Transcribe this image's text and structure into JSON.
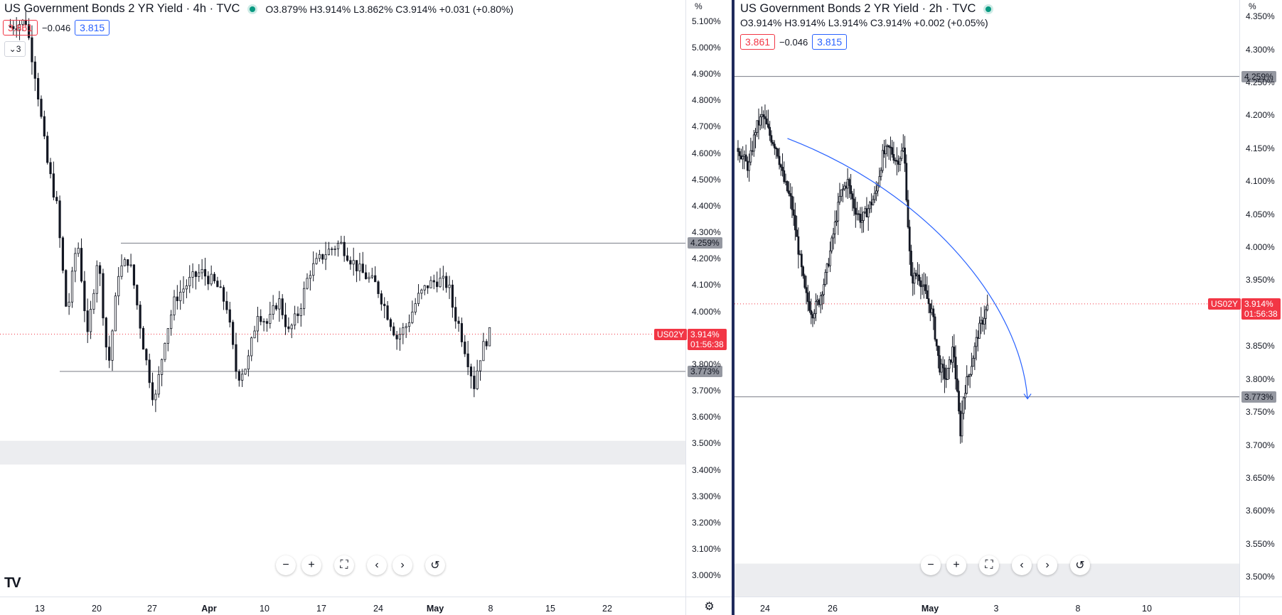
{
  "chart_data": [
    {
      "type": "candlestick",
      "title": "US Government Bonds 2 YR Yield · 4h · TVC",
      "ohlc": {
        "O": "3.879%",
        "H": "3.914%",
        "L": "3.862%",
        "C": "3.914%",
        "change": "+0.031 (+0.80%)"
      },
      "bid": "3.861",
      "spread": "−0.046",
      "ask": "3.815",
      "unit": "%",
      "y_ticks": [
        "5.100%",
        "5.000%",
        "4.900%",
        "4.800%",
        "4.700%",
        "4.600%",
        "4.500%",
        "4.400%",
        "4.300%",
        "4.200%",
        "4.100%",
        "4.000%",
        "3.900%",
        "3.800%",
        "3.700%",
        "3.600%",
        "3.500%",
        "3.400%",
        "3.300%",
        "3.200%",
        "3.100%",
        "3.000%"
      ],
      "x_ticks": [
        "13",
        "20",
        "27",
        "Apr",
        "10",
        "17",
        "24",
        "May",
        "8",
        "15",
        "22"
      ],
      "ylim": [
        2.92,
        5.18
      ],
      "horizontal_levels": [
        {
          "value": 4.259,
          "label": "4.259%"
        },
        {
          "value": 3.773,
          "label": "3.773%"
        }
      ],
      "last_price": {
        "symbol": "US02Y",
        "value": 3.914,
        "label": "3.914%",
        "countdown": "01:56:38"
      },
      "shaded_zone": [
        3.42,
        3.51
      ],
      "series_path": [
        {
          "x": 0,
          "y": 5.08
        },
        {
          "x": 3,
          "y": 5.1
        },
        {
          "x": 5,
          "y": 4.88
        },
        {
          "x": 7,
          "y": 4.58
        },
        {
          "x": 9,
          "y": 4.4
        },
        {
          "x": 11,
          "y": 3.98
        },
        {
          "x": 13,
          "y": 4.28
        },
        {
          "x": 15,
          "y": 3.9
        },
        {
          "x": 17,
          "y": 4.22
        },
        {
          "x": 19,
          "y": 3.78
        },
        {
          "x": 21,
          "y": 4.15
        },
        {
          "x": 23,
          "y": 4.2
        },
        {
          "x": 24,
          "y": 4.1
        },
        {
          "x": 26,
          "y": 3.85
        },
        {
          "x": 28,
          "y": 3.65
        },
        {
          "x": 30,
          "y": 3.9
        },
        {
          "x": 32,
          "y": 4.05
        },
        {
          "x": 35,
          "y": 4.12
        },
        {
          "x": 37,
          "y": 4.15
        },
        {
          "x": 40,
          "y": 4.1
        },
        {
          "x": 42,
          "y": 4.02
        },
        {
          "x": 44,
          "y": 3.75
        },
        {
          "x": 46,
          "y": 3.8
        },
        {
          "x": 48,
          "y": 4.0
        },
        {
          "x": 50,
          "y": 3.95
        },
        {
          "x": 52,
          "y": 4.05
        },
        {
          "x": 54,
          "y": 3.92
        },
        {
          "x": 56,
          "y": 4.0
        },
        {
          "x": 58,
          "y": 4.15
        },
        {
          "x": 61,
          "y": 4.22
        },
        {
          "x": 64,
          "y": 4.26
        },
        {
          "x": 66,
          "y": 4.2
        },
        {
          "x": 68,
          "y": 4.15
        },
        {
          "x": 71,
          "y": 4.1
        },
        {
          "x": 73,
          "y": 4.0
        },
        {
          "x": 75,
          "y": 3.9
        },
        {
          "x": 77,
          "y": 3.95
        },
        {
          "x": 79,
          "y": 4.05
        },
        {
          "x": 81,
          "y": 4.1
        },
        {
          "x": 83,
          "y": 4.12
        },
        {
          "x": 85,
          "y": 4.1
        },
        {
          "x": 86,
          "y": 4.0
        },
        {
          "x": 87,
          "y": 3.95
        },
        {
          "x": 89,
          "y": 3.8
        },
        {
          "x": 90,
          "y": 3.72
        },
        {
          "x": 91,
          "y": 3.82
        },
        {
          "x": 92,
          "y": 3.88
        },
        {
          "x": 93,
          "y": 3.914
        }
      ],
      "x_domain": [
        -2,
        131
      ]
    },
    {
      "type": "candlestick",
      "title": "US Government Bonds 2 YR Yield · 2h · TVC",
      "ohlc": {
        "O": "3.914%",
        "H": "3.914%",
        "L": "3.914%",
        "C": "3.914%",
        "change": "+0.002 (+0.05%)"
      },
      "bid": "3.861",
      "spread": "−0.046",
      "ask": "3.815",
      "unit": "%",
      "y_ticks": [
        "4.350%",
        "4.300%",
        "4.250%",
        "4.200%",
        "4.150%",
        "4.100%",
        "4.050%",
        "4.000%",
        "3.950%",
        "3.900%",
        "3.850%",
        "3.800%",
        "3.750%",
        "3.700%",
        "3.650%",
        "3.600%",
        "3.550%",
        "3.500%"
      ],
      "x_ticks": [
        "24",
        "26",
        "May",
        "3",
        "8",
        "10"
      ],
      "ylim": [
        3.47,
        4.375
      ],
      "horizontal_levels": [
        {
          "value": 4.259,
          "label": "4.259%"
        },
        {
          "value": 3.773,
          "label": "3.773%"
        }
      ],
      "last_price": {
        "symbol": "US02Y",
        "value": 3.914,
        "label": "3.914%",
        "countdown": "01:56:38"
      },
      "shaded_zone": [
        3.47,
        3.52
      ],
      "projection_curve": [
        {
          "x": 14,
          "y": 4.165
        },
        {
          "x": 55,
          "y": 4.08
        },
        {
          "x": 80,
          "y": 3.91
        },
        {
          "x": 82,
          "y": 3.77
        }
      ],
      "series_path": [
        {
          "x": 0,
          "y": 4.15
        },
        {
          "x": 3,
          "y": 4.12
        },
        {
          "x": 5,
          "y": 4.18
        },
        {
          "x": 7,
          "y": 4.2
        },
        {
          "x": 9,
          "y": 4.17
        },
        {
          "x": 11,
          "y": 4.15
        },
        {
          "x": 13,
          "y": 4.1
        },
        {
          "x": 15,
          "y": 4.07
        },
        {
          "x": 17,
          "y": 4.0
        },
        {
          "x": 19,
          "y": 3.93
        },
        {
          "x": 21,
          "y": 3.9
        },
        {
          "x": 23,
          "y": 3.92
        },
        {
          "x": 25,
          "y": 3.96
        },
        {
          "x": 27,
          "y": 4.02
        },
        {
          "x": 29,
          "y": 4.08
        },
        {
          "x": 31,
          "y": 4.1
        },
        {
          "x": 33,
          "y": 4.06
        },
        {
          "x": 35,
          "y": 4.04
        },
        {
          "x": 37,
          "y": 4.06
        },
        {
          "x": 39,
          "y": 4.08
        },
        {
          "x": 41,
          "y": 4.14
        },
        {
          "x": 43,
          "y": 4.15
        },
        {
          "x": 45,
          "y": 4.13
        },
        {
          "x": 47,
          "y": 4.15
        },
        {
          "x": 48,
          "y": 4.05
        },
        {
          "x": 49,
          "y": 3.95
        },
        {
          "x": 51,
          "y": 3.96
        },
        {
          "x": 53,
          "y": 3.93
        },
        {
          "x": 55,
          "y": 3.9
        },
        {
          "x": 57,
          "y": 3.82
        },
        {
          "x": 59,
          "y": 3.8
        },
        {
          "x": 61,
          "y": 3.85
        },
        {
          "x": 62,
          "y": 3.78
        },
        {
          "x": 63,
          "y": 3.72
        },
        {
          "x": 64,
          "y": 3.78
        },
        {
          "x": 66,
          "y": 3.82
        },
        {
          "x": 68,
          "y": 3.87
        },
        {
          "x": 70,
          "y": 3.9
        },
        {
          "x": 71,
          "y": 3.914
        }
      ],
      "x_domain": [
        -1,
        142
      ]
    }
  ],
  "navbar": {
    "zoom_out": "−",
    "zoom_in": "+",
    "fullscreen": "⛶",
    "scroll_left": "‹",
    "scroll_right": "›",
    "reset": "↺"
  },
  "pane_left_collapse_count": "3",
  "logo_text": "TV"
}
